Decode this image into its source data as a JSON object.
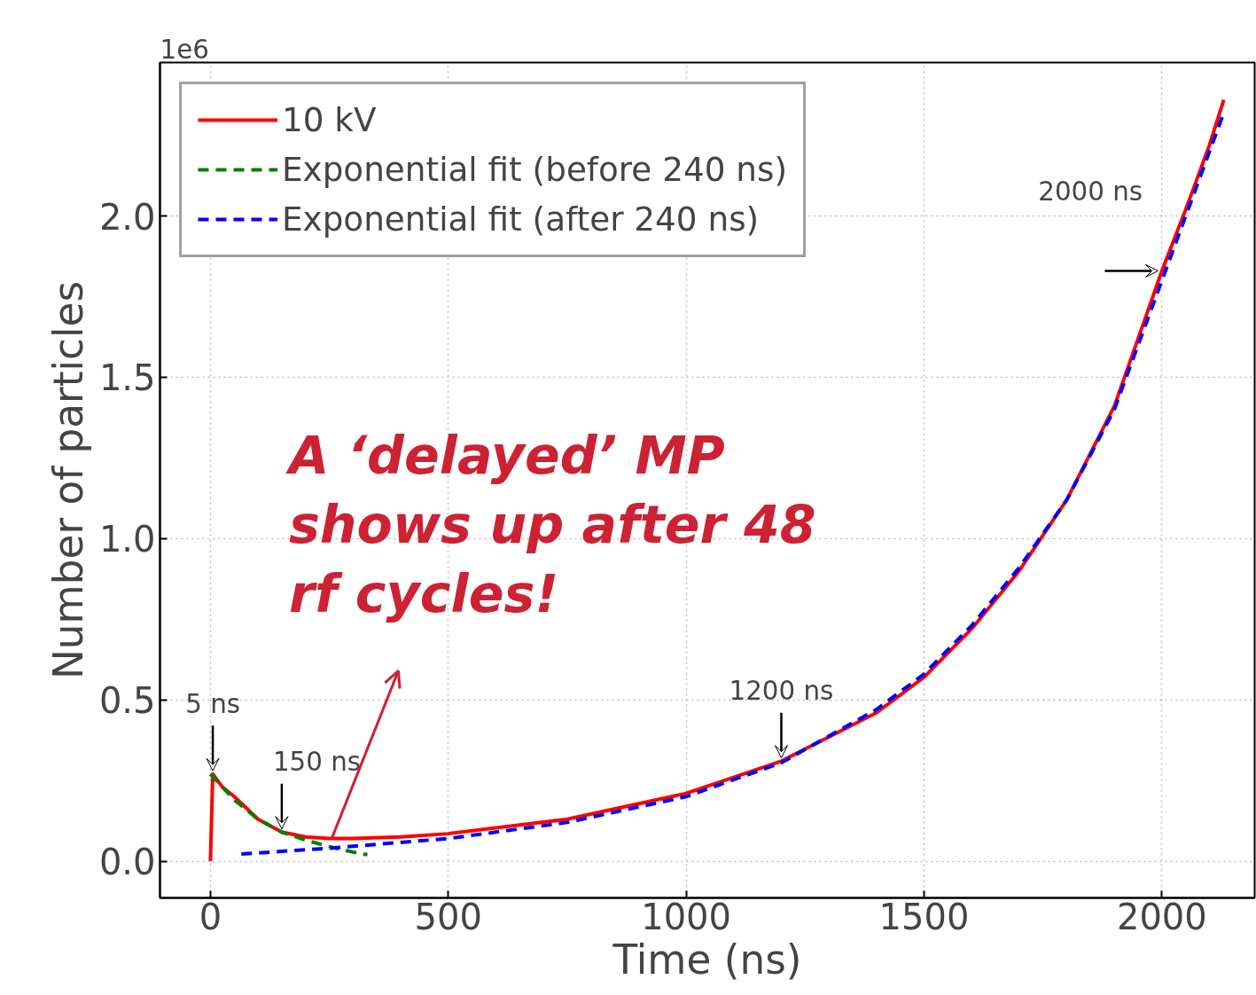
{
  "chart_data": {
    "type": "line",
    "xlabel": "Time (ns)",
    "ylabel": "Number of particles",
    "xlim": [
      -106,
      2195
    ],
    "ylim": [
      -0.114,
      2.476
    ],
    "xticks": [
      0,
      500,
      1000,
      1500,
      2000
    ],
    "yticks": [
      {
        "value": 0,
        "label": "0.0"
      },
      0.5,
      {
        "value": 1,
        "label": "1.0"
      },
      1.5,
      {
        "value": 2,
        "label": "2.0"
      }
    ],
    "grid": true,
    "legend": "top left",
    "series": [
      {
        "name": "10 kV",
        "color": "#ff0000",
        "line_style": "solid",
        "x": [
          0,
          5,
          25,
          50,
          100,
          150,
          200,
          250,
          300,
          400,
          500,
          750,
          1000,
          1200,
          1400,
          1500,
          1600,
          1700,
          1800,
          1900,
          2000,
          2050,
          2100,
          2130
        ],
        "values": [
          0,
          0.27,
          0.23,
          0.2,
          0.13,
          0.09,
          0.075,
          0.07,
          0.07,
          0.075,
          0.085,
          0.13,
          0.21,
          0.31,
          0.46,
          0.57,
          0.72,
          0.9,
          1.12,
          1.41,
          1.83,
          2.02,
          2.22,
          2.36
        ]
      },
      {
        "name": "Exponential fit (before 240 ns)",
        "color": "#008000",
        "line_style": "dashed",
        "x": [
          0,
          50,
          100,
          150,
          200,
          250,
          300,
          330
        ],
        "values": [
          0.27,
          0.19,
          0.13,
          0.09,
          0.065,
          0.045,
          0.028,
          0.02
        ]
      },
      {
        "name": "Exponential fit (after 240 ns)",
        "color": "#0000ff",
        "line_style": "dashed",
        "x": [
          65,
          250,
          500,
          750,
          1000,
          1200,
          1400,
          1500,
          1600,
          1700,
          1800,
          1900,
          2000,
          2050,
          2100,
          2130
        ],
        "values": [
          0.022,
          0.04,
          0.07,
          0.12,
          0.2,
          0.305,
          0.47,
          0.58,
          0.73,
          0.91,
          1.12,
          1.4,
          1.8,
          2.0,
          2.2,
          2.32
        ]
      }
    ],
    "annotations": [
      "1e6",
      {
        "text": "5 ns",
        "x": 5,
        "y": 0.27
      },
      {
        "text": "150 ns",
        "x": 150,
        "y": 0.09
      },
      {
        "text": "1200 ns",
        "x": 1200,
        "y": 0.31
      },
      {
        "text": "2000 ns",
        "x": 2000,
        "y": 1.83
      },
      {
        "text": "A ‘delayed’ MP shows up after 48 rf cycles!",
        "x": 255,
        "y": 0.07
      }
    ]
  }
}
